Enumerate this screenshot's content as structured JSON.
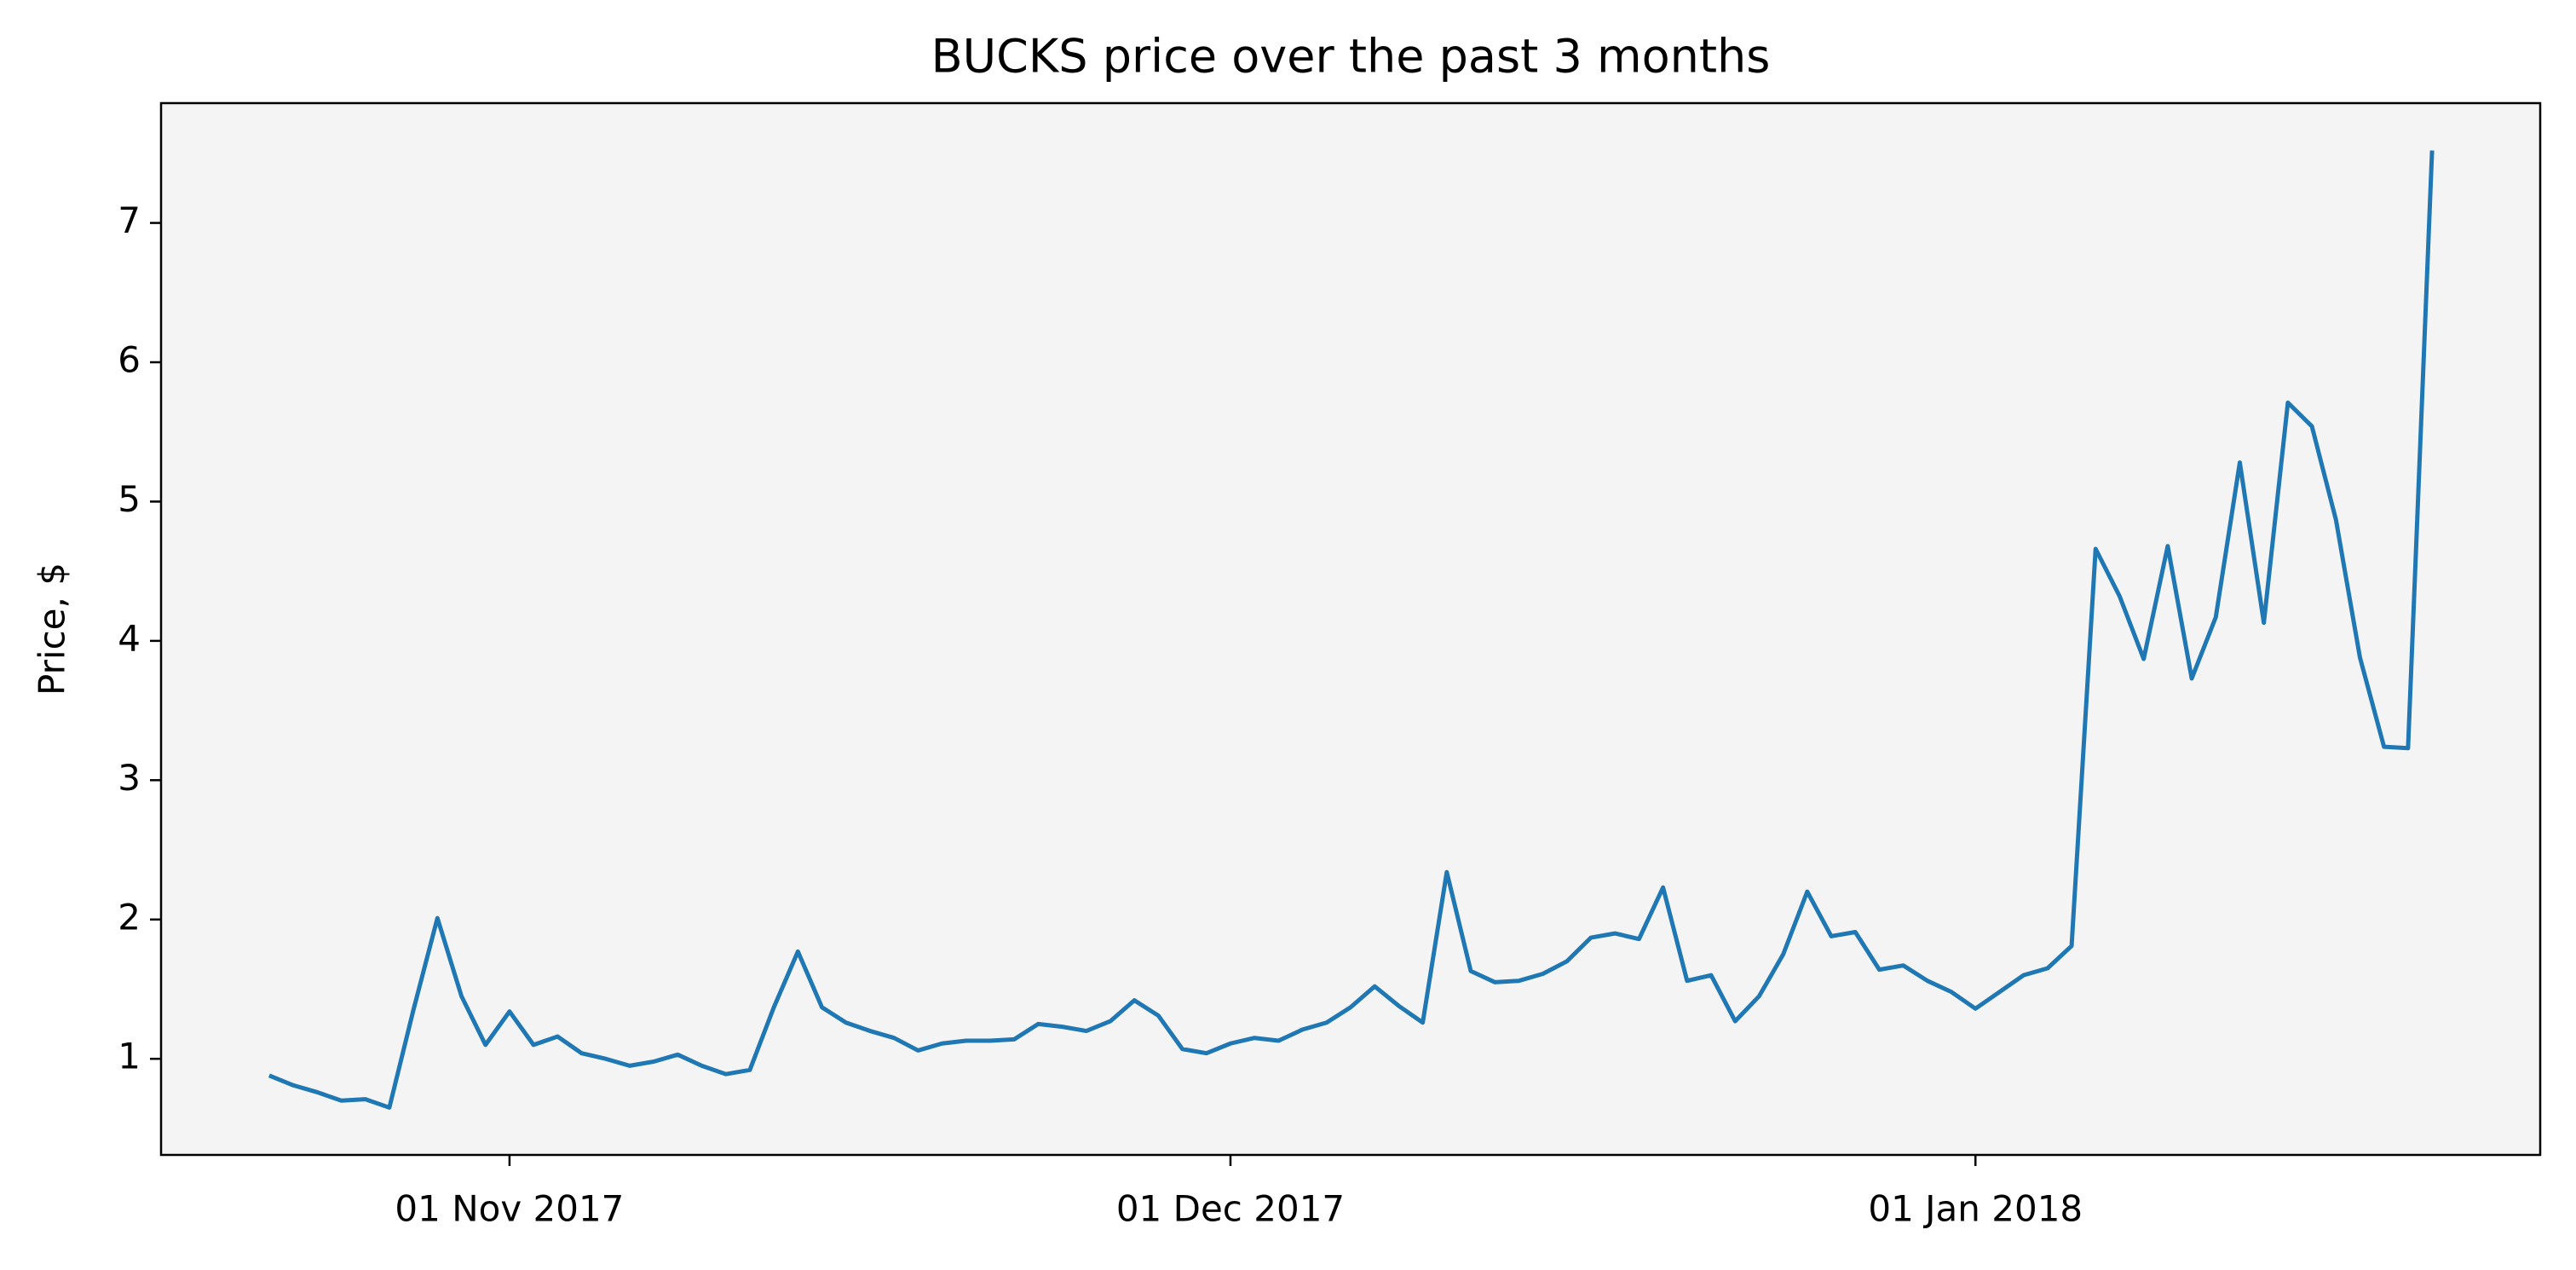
{
  "chart_data": {
    "type": "line",
    "title": "BUCKS price over the past 3 months",
    "y_label": "Price, $",
    "color": "#1f77b4",
    "background": "#f4f4f4",
    "x": [
      "2017-10-22",
      "2017-10-23",
      "2017-10-24",
      "2017-10-25",
      "2017-10-26",
      "2017-10-27",
      "2017-10-28",
      "2017-10-29",
      "2017-10-30",
      "2017-10-31",
      "2017-11-01",
      "2017-11-02",
      "2017-11-03",
      "2017-11-04",
      "2017-11-05",
      "2017-11-06",
      "2017-11-07",
      "2017-11-08",
      "2017-11-09",
      "2017-11-10",
      "2017-11-11",
      "2017-11-12",
      "2017-11-13",
      "2017-11-14",
      "2017-11-15",
      "2017-11-16",
      "2017-11-17",
      "2017-11-18",
      "2017-11-19",
      "2017-11-20",
      "2017-11-21",
      "2017-11-22",
      "2017-11-23",
      "2017-11-24",
      "2017-11-25",
      "2017-11-26",
      "2017-11-27",
      "2017-11-28",
      "2017-11-29",
      "2017-11-30",
      "2017-12-01",
      "2017-12-02",
      "2017-12-03",
      "2017-12-04",
      "2017-12-05",
      "2017-12-06",
      "2017-12-07",
      "2017-12-08",
      "2017-12-09",
      "2017-12-10",
      "2017-12-11",
      "2017-12-12",
      "2017-12-13",
      "2017-12-14",
      "2017-12-15",
      "2017-12-16",
      "2017-12-17",
      "2017-12-18",
      "2017-12-19",
      "2017-12-20",
      "2017-12-21",
      "2017-12-22",
      "2017-12-23",
      "2017-12-24",
      "2017-12-25",
      "2017-12-26",
      "2017-12-27",
      "2017-12-28",
      "2017-12-29",
      "2017-12-30",
      "2017-12-31",
      "2018-01-01",
      "2018-01-02",
      "2018-01-03",
      "2018-01-04",
      "2018-01-05",
      "2018-01-06",
      "2018-01-07",
      "2018-01-08",
      "2018-01-09",
      "2018-01-10",
      "2018-01-11",
      "2018-01-12",
      "2018-01-13",
      "2018-01-14",
      "2018-01-15",
      "2018-01-16",
      "2018-01-17",
      "2018-01-18",
      "2018-01-19",
      "2018-01-20"
    ],
    "values": [
      0.88,
      0.81,
      0.76,
      0.7,
      0.71,
      0.65,
      1.35,
      2.01,
      1.45,
      1.1,
      1.34,
      1.1,
      1.16,
      1.04,
      1.0,
      0.95,
      0.98,
      1.03,
      0.95,
      0.89,
      0.92,
      1.37,
      1.77,
      1.37,
      1.26,
      1.2,
      1.15,
      1.06,
      1.11,
      1.13,
      1.13,
      1.14,
      1.25,
      1.23,
      1.2,
      1.27,
      1.42,
      1.31,
      1.07,
      1.04,
      1.11,
      1.15,
      1.13,
      1.21,
      1.26,
      1.37,
      1.52,
      1.38,
      1.26,
      2.34,
      1.63,
      1.55,
      1.56,
      1.61,
      1.7,
      1.87,
      1.9,
      1.86,
      2.23,
      1.56,
      1.6,
      1.27,
      1.45,
      1.75,
      2.2,
      1.88,
      1.91,
      1.64,
      1.67,
      1.56,
      1.48,
      1.36,
      1.48,
      1.6,
      1.65,
      1.81,
      4.66,
      4.32,
      3.87,
      4.68,
      3.73,
      4.17,
      5.28,
      4.13,
      5.71,
      5.54,
      4.87,
      3.88,
      3.24,
      3.23,
      7.52
    ],
    "xlim": [
      "2017-10-17T12:00Z",
      "2018-01-24T12:00Z"
    ],
    "xticks": [
      {
        "value": "2017-11-01",
        "label": "01 Nov 2017"
      },
      {
        "value": "2017-12-01",
        "label": "01 Dec 2017"
      },
      {
        "value": "2018-01-01",
        "label": "01 Jan 2018"
      }
    ],
    "ylim": [
      0.31,
      7.86
    ],
    "yticks": [
      1,
      2,
      3,
      4,
      5,
      6,
      7
    ]
  }
}
